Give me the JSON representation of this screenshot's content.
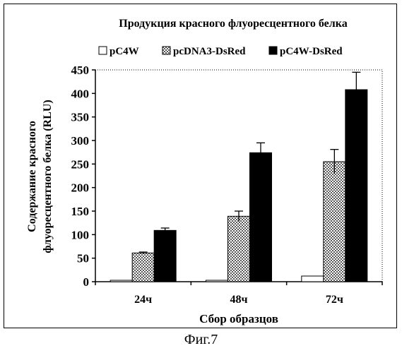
{
  "chart_data": {
    "type": "bar",
    "title": "Продукция красного флуоресцентного белка",
    "ylabel_line1": "Содержание красного",
    "ylabel_line2": "флуоресцентного белка (RLU)",
    "xlabel": "Сбор образцов",
    "categories": [
      "24ч",
      "48ч",
      "72ч"
    ],
    "ylim": [
      0,
      450
    ],
    "yticks": [
      0,
      50,
      100,
      150,
      200,
      250,
      300,
      350,
      400,
      450
    ],
    "grid": false,
    "legend_position": "top",
    "series": [
      {
        "name": "pC4W",
        "fill": "#ffffff",
        "pattern": "none",
        "values": [
          3,
          3,
          12
        ],
        "errors": [
          0,
          0,
          0
        ]
      },
      {
        "name": "pcDNA3-DsRed",
        "fill": "#bdbdbd",
        "pattern": "checker",
        "values": [
          61,
          139,
          255
        ],
        "errors": [
          2,
          11,
          26
        ]
      },
      {
        "name": "pC4W-DsRed",
        "fill": "#000000",
        "pattern": "none",
        "values": [
          109,
          274,
          408
        ],
        "errors": [
          5,
          21,
          37
        ]
      }
    ]
  },
  "figure_caption": "Фиг.7"
}
